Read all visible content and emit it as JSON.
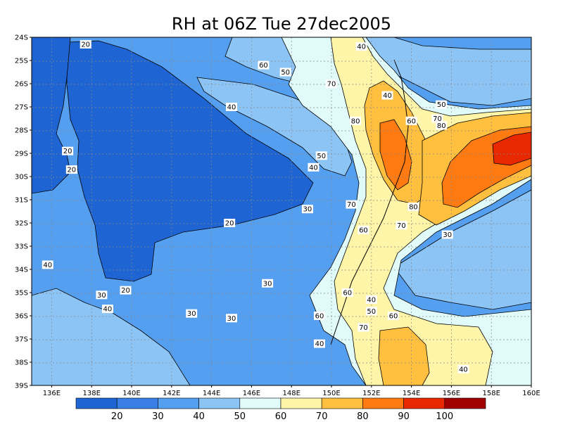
{
  "title": "RH at 06Z Tue 27dec2005",
  "map": {
    "lat_labels": [
      "24S",
      "25S",
      "26S",
      "27S",
      "28S",
      "29S",
      "30S",
      "31S",
      "32S",
      "33S",
      "34S",
      "35S",
      "36S",
      "37S",
      "38S",
      "39S"
    ],
    "lon_labels": [
      "136E",
      "138E",
      "140E",
      "142E",
      "144E",
      "146E",
      "148E",
      "150E",
      "152E",
      "154E",
      "156E",
      "158E",
      "160E"
    ],
    "contour_labels": [
      {
        "text": "20",
        "lon": 137.7,
        "lat": -24.3
      },
      {
        "text": "60",
        "lon": 146.6,
        "lat": -25.2
      },
      {
        "text": "50",
        "lon": 147.7,
        "lat": -25.5
      },
      {
        "text": "40",
        "lon": 151.5,
        "lat": -24.4
      },
      {
        "text": "70",
        "lon": 150.0,
        "lat": -26.0
      },
      {
        "text": "40",
        "lon": 152.8,
        "lat": -26.5
      },
      {
        "text": "50",
        "lon": 155.5,
        "lat": -26.9
      },
      {
        "text": "40",
        "lon": 145.0,
        "lat": -27.0
      },
      {
        "text": "80",
        "lon": 151.2,
        "lat": -27.6
      },
      {
        "text": "60",
        "lon": 154.0,
        "lat": -27.6
      },
      {
        "text": "70",
        "lon": 155.3,
        "lat": -27.5
      },
      {
        "text": "80",
        "lon": 155.5,
        "lat": -27.8
      },
      {
        "text": "20",
        "lon": 136.8,
        "lat": -28.9
      },
      {
        "text": "50",
        "lon": 149.5,
        "lat": -29.1
      },
      {
        "text": "40",
        "lon": 149.1,
        "lat": -29.6
      },
      {
        "text": "20",
        "lon": 137.0,
        "lat": -29.7
      },
      {
        "text": "70",
        "lon": 151.0,
        "lat": -31.2
      },
      {
        "text": "30",
        "lon": 148.8,
        "lat": -31.4
      },
      {
        "text": "80",
        "lon": 154.1,
        "lat": -31.3
      },
      {
        "text": "20",
        "lon": 144.9,
        "lat": -32.0
      },
      {
        "text": "60",
        "lon": 151.6,
        "lat": -32.3
      },
      {
        "text": "70",
        "lon": 153.5,
        "lat": -32.1
      },
      {
        "text": "30",
        "lon": 155.8,
        "lat": -32.5
      },
      {
        "text": "40",
        "lon": 135.8,
        "lat": -33.8
      },
      {
        "text": "30",
        "lon": 146.8,
        "lat": -34.6
      },
      {
        "text": "20",
        "lon": 139.7,
        "lat": -34.9
      },
      {
        "text": "60",
        "lon": 150.8,
        "lat": -35.0
      },
      {
        "text": "30",
        "lon": 138.5,
        "lat": -35.1
      },
      {
        "text": "40",
        "lon": 152.0,
        "lat": -35.3
      },
      {
        "text": "40",
        "lon": 138.8,
        "lat": -35.7
      },
      {
        "text": "50",
        "lon": 152.0,
        "lat": -35.8
      },
      {
        "text": "30",
        "lon": 143.0,
        "lat": -35.9
      },
      {
        "text": "60",
        "lon": 149.4,
        "lat": -36.0
      },
      {
        "text": "60",
        "lon": 153.1,
        "lat": -36.0
      },
      {
        "text": "30",
        "lon": 145.0,
        "lat": -36.1
      },
      {
        "text": "70",
        "lon": 151.6,
        "lat": -36.5
      },
      {
        "text": "40",
        "lon": 149.4,
        "lat": -37.2
      },
      {
        "text": "40",
        "lon": 156.6,
        "lat": -38.3
      }
    ]
  },
  "colorbar": {
    "levels": [
      "20",
      "30",
      "40",
      "50",
      "60",
      "70",
      "80",
      "90",
      "100"
    ],
    "colors": [
      "#1e64d2",
      "#3a7fe6",
      "#559ff0",
      "#8cc4f5",
      "#e1fafa",
      "#fff5a8",
      "#ffc040",
      "#ff7a10",
      "#e82800",
      "#a00000"
    ]
  }
}
